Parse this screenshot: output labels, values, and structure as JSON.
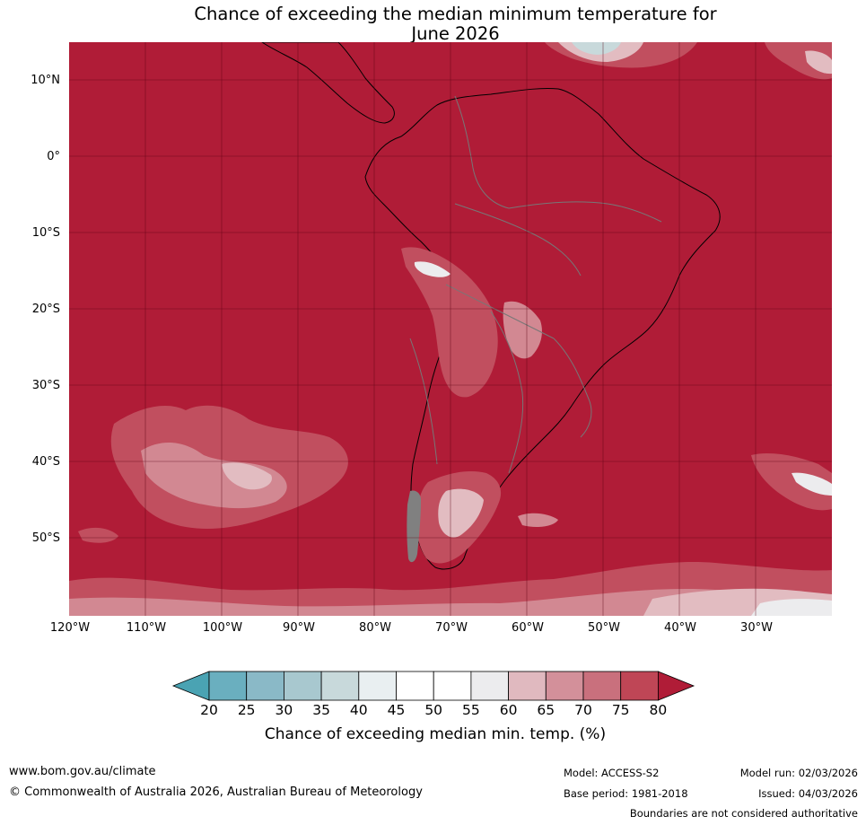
{
  "title_line1": "Chance of exceeding the median minimum temperature for",
  "title_line2": "June 2026",
  "latitude_labels": [
    "10°N",
    "0°",
    "10°S",
    "20°S",
    "30°S",
    "40°S",
    "50°S"
  ],
  "longitude_labels": [
    "120°W",
    "110°W",
    "100°W",
    "90°W",
    "80°W",
    "70°W",
    "60°W",
    "50°W",
    "40°W",
    "30°W"
  ],
  "colorbar": {
    "ticks": [
      "20",
      "25",
      "30",
      "35",
      "40",
      "45",
      "50",
      "55",
      "60",
      "65",
      "70",
      "75",
      "80"
    ],
    "label": "Chance of exceeding median min. temp. (%)",
    "colors": {
      "below_20": "#4aa3b3",
      "20_25": "#6aafbf",
      "25_30": "#8ab9c7",
      "30_35": "#a8c8cf",
      "35_40": "#c8d9db",
      "40_45": "#e9eff1",
      "45_50": "#ffffff",
      "50_55": "#ffffff",
      "55_60": "#ececee",
      "60_65": "#e0b9bf",
      "65_70": "#d3909a",
      "70_75": "#c9707d",
      "75_80": "#bf4656",
      "above_80": "#b01c37"
    }
  },
  "map": {
    "dominant_color": "#b01c37",
    "description_colors": {
      "high": "#b01c37",
      "mid_high": "#c14f5f",
      "mid": "#d28892",
      "low_mid": "#e2bcc1",
      "near_neutral": "#ececee",
      "neutral": "#ffffff",
      "cool": "#c8d9db"
    }
  },
  "footer": {
    "website": "www.bom.gov.au/climate",
    "copyright": "© Commonwealth of Australia 2026, Australian Bureau of Meteorology",
    "model": "Model: ACCESS-S2",
    "base_period": "Base period: 1981-2018",
    "model_run": "Model run: 02/03/2026",
    "issued": "Issued: 04/03/2026",
    "disclaimer": "Boundaries are not considered authoritative"
  }
}
